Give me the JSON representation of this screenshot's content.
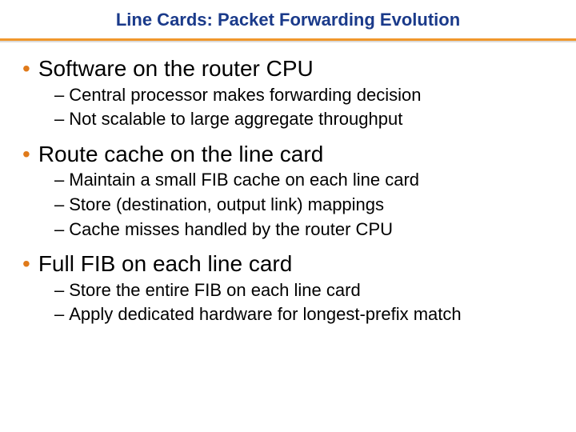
{
  "title": {
    "text": "Line Cards: Packet Forwarding Evolution",
    "color": "#1a3a8a",
    "fontsize": 22,
    "fontweight": "bold"
  },
  "divider": {
    "orange_color": "#f0972c",
    "shadow_color": "#dcdcdc"
  },
  "bullet": {
    "marker": "•",
    "marker_color": "#e07a1a",
    "fontsize": 28,
    "text_color": "#000000"
  },
  "sub": {
    "marker": "–",
    "fontsize": 22,
    "text_color": "#000000"
  },
  "sections": [
    {
      "heading": "Software on the router CPU",
      "items": [
        "Central processor makes forwarding decision",
        "Not scalable to large aggregate throughput"
      ]
    },
    {
      "heading": "Route cache on the line card",
      "items": [
        "Maintain a small FIB cache on each line card",
        "Store (destination, output link) mappings",
        "Cache misses handled by the router CPU"
      ]
    },
    {
      "heading": "Full FIB on each line card",
      "items": [
        "Store the entire FIB on each line card",
        "Apply dedicated hardware for longest-prefix match"
      ]
    }
  ]
}
